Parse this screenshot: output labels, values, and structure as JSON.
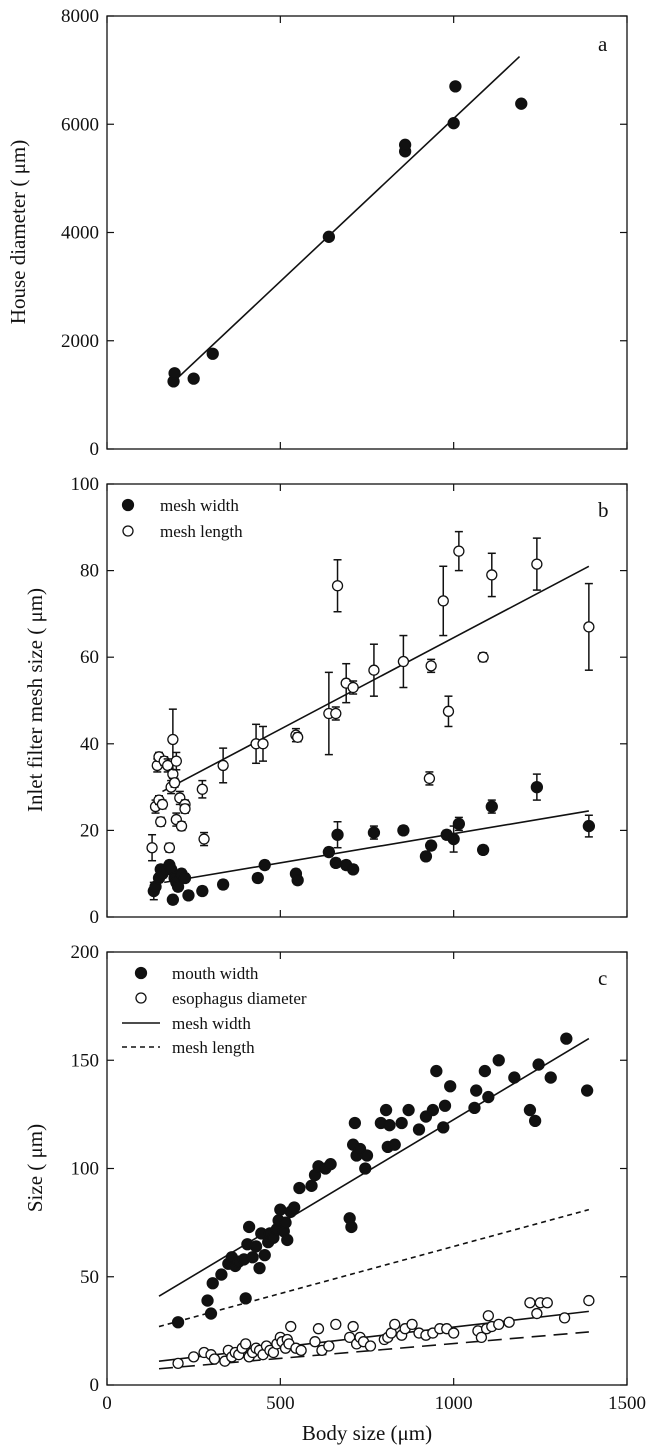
{
  "xlabel": "Body size (μm)",
  "xticks": [
    0,
    500,
    1000,
    1500
  ],
  "xlim": [
    0,
    1500
  ],
  "chart_data": [
    {
      "type": "scatter",
      "panel": "a",
      "ylabel": "House diameter ( μm)",
      "ylim": [
        0,
        8000
      ],
      "yticks": [
        0,
        2000,
        4000,
        6000,
        8000
      ],
      "xlim": [
        0,
        1500
      ],
      "grid": false,
      "series": [
        {
          "marker": "filled",
          "points": [
            [
              192,
              1250
            ],
            [
              195,
              1400
            ],
            [
              250,
              1300
            ],
            [
              305,
              1760
            ],
            [
              640,
              3920
            ],
            [
              860,
              5500
            ],
            [
              860,
              5620
            ],
            [
              1000,
              6020
            ],
            [
              1005,
              6700
            ],
            [
              1195,
              6380
            ]
          ]
        }
      ],
      "fits": [
        {
          "style": "solid",
          "x": [
            185,
            1190
          ],
          "y": [
            1200,
            7250
          ]
        }
      ]
    },
    {
      "type": "scatter",
      "panel": "b",
      "ylabel": "Inlet filter mesh size ( μm)",
      "ylim": [
        0,
        100
      ],
      "yticks": [
        0,
        20,
        40,
        60,
        80,
        100
      ],
      "xlim": [
        0,
        1500
      ],
      "grid": false,
      "legend_position": "top-left",
      "series": [
        {
          "name": "mesh width",
          "marker": "filled",
          "points": [
            [
              135,
              6,
              2
            ],
            [
              140,
              7,
              1
            ],
            [
              150,
              9,
              1
            ],
            [
              155,
              11,
              1
            ],
            [
              160,
              10,
              1
            ],
            [
              170,
              11,
              1
            ],
            [
              180,
              12,
              1
            ],
            [
              185,
              11,
              1
            ],
            [
              190,
              4,
              1
            ],
            [
              195,
              9,
              1
            ],
            [
              200,
              8,
              1
            ],
            [
              205,
              7,
              1
            ],
            [
              215,
              10,
              1
            ],
            [
              225,
              9,
              1
            ],
            [
              235,
              5,
              1
            ],
            [
              275,
              6,
              1
            ],
            [
              335,
              7.5,
              1
            ],
            [
              435,
              9,
              1
            ],
            [
              455,
              12,
              1
            ],
            [
              545,
              10,
              1
            ],
            [
              550,
              8.5,
              1
            ],
            [
              640,
              15,
              1
            ],
            [
              660,
              12.5,
              1
            ],
            [
              665,
              19,
              3
            ],
            [
              690,
              12,
              1
            ],
            [
              710,
              11,
              1
            ],
            [
              770,
              19.5,
              1.5
            ],
            [
              855,
              20,
              1
            ],
            [
              920,
              14,
              1
            ],
            [
              935,
              16.5,
              1
            ],
            [
              980,
              19,
              1
            ],
            [
              1000,
              18,
              3
            ],
            [
              1015,
              21.5,
              1.5
            ],
            [
              1085,
              15.5,
              1
            ],
            [
              1110,
              25.5,
              1.5
            ],
            [
              1240,
              30,
              3
            ],
            [
              1390,
              21,
              2.5
            ]
          ]
        },
        {
          "name": "mesh length",
          "marker": "open",
          "points": [
            [
              130,
              16,
              3
            ],
            [
              140,
              25.5,
              1.5
            ],
            [
              145,
              35,
              1.5
            ],
            [
              150,
              27,
              1
            ],
            [
              150,
              37,
              1
            ],
            [
              155,
              22,
              1
            ],
            [
              160,
              26,
              1
            ],
            [
              165,
              36,
              1
            ],
            [
              175,
              35,
              1.5
            ],
            [
              180,
              16,
              1
            ],
            [
              185,
              30,
              1.5
            ],
            [
              190,
              41,
              7
            ],
            [
              190,
              33,
              1
            ],
            [
              195,
              31,
              1
            ],
            [
              200,
              36,
              2
            ],
            [
              200,
              22.5,
              1.5
            ],
            [
              210,
              27.5,
              1.5
            ],
            [
              215,
              21,
              1
            ],
            [
              225,
              26,
              1
            ],
            [
              225,
              25,
              1
            ],
            [
              275,
              29.5,
              2
            ],
            [
              280,
              18,
              1.5
            ],
            [
              335,
              35,
              4
            ],
            [
              430,
              40,
              4.5
            ],
            [
              450,
              40,
              4
            ],
            [
              545,
              42,
              1.5
            ],
            [
              550,
              41.5,
              1
            ],
            [
              640,
              47,
              9.5
            ],
            [
              660,
              47,
              1.5
            ],
            [
              665,
              76.5,
              6
            ],
            [
              690,
              54,
              4.5
            ],
            [
              710,
              53,
              1.5
            ],
            [
              770,
              57,
              6
            ],
            [
              855,
              59,
              6
            ],
            [
              930,
              32,
              1.5
            ],
            [
              935,
              58,
              1.5
            ],
            [
              970,
              73,
              8
            ],
            [
              985,
              47.5,
              3.5
            ],
            [
              1015,
              84.5,
              4.5
            ],
            [
              1085,
              60,
              1
            ],
            [
              1110,
              79,
              5
            ],
            [
              1240,
              81.5,
              6
            ],
            [
              1390,
              67,
              10
            ]
          ]
        }
      ],
      "fits": [
        {
          "style": "solid",
          "x": [
            160,
            1390
          ],
          "y": [
            29,
            81
          ]
        },
        {
          "style": "solid",
          "x": [
            165,
            1390
          ],
          "y": [
            8,
            24.5
          ]
        }
      ]
    },
    {
      "type": "scatter",
      "panel": "c",
      "ylabel": "Size ( μm)",
      "ylim": [
        0,
        200
      ],
      "yticks": [
        0,
        50,
        100,
        150,
        200
      ],
      "xlim": [
        0,
        1500
      ],
      "grid": false,
      "legend_position": "top-left",
      "series": [
        {
          "name": "mouth width",
          "marker": "filled",
          "points": [
            [
              205,
              29
            ],
            [
              290,
              39
            ],
            [
              300,
              33
            ],
            [
              305,
              47
            ],
            [
              330,
              51
            ],
            [
              350,
              56
            ],
            [
              360,
              59
            ],
            [
              370,
              55
            ],
            [
              380,
              57
            ],
            [
              395,
              58
            ],
            [
              400,
              40
            ],
            [
              405,
              65
            ],
            [
              410,
              73
            ],
            [
              420,
              59
            ],
            [
              430,
              64
            ],
            [
              440,
              54
            ],
            [
              445,
              70
            ],
            [
              455,
              60
            ],
            [
              465,
              66
            ],
            [
              470,
              70
            ],
            [
              480,
              68
            ],
            [
              490,
              72
            ],
            [
              495,
              76
            ],
            [
              500,
              81
            ],
            [
              510,
              71
            ],
            [
              515,
              75
            ],
            [
              520,
              67
            ],
            [
              530,
              80
            ],
            [
              540,
              82
            ],
            [
              555,
              91
            ],
            [
              590,
              92
            ],
            [
              600,
              97
            ],
            [
              610,
              101
            ],
            [
              630,
              100
            ],
            [
              645,
              102
            ],
            [
              700,
              77
            ],
            [
              705,
              73
            ],
            [
              710,
              111
            ],
            [
              715,
              121
            ],
            [
              720,
              106
            ],
            [
              730,
              109
            ],
            [
              745,
              100
            ],
            [
              750,
              106
            ],
            [
              790,
              121
            ],
            [
              805,
              127
            ],
            [
              810,
              110
            ],
            [
              815,
              120
            ],
            [
              830,
              111
            ],
            [
              850,
              121
            ],
            [
              870,
              127
            ],
            [
              900,
              118
            ],
            [
              920,
              124
            ],
            [
              940,
              127
            ],
            [
              950,
              145
            ],
            [
              970,
              119
            ],
            [
              975,
              129
            ],
            [
              990,
              138
            ],
            [
              1060,
              128
            ],
            [
              1065,
              136
            ],
            [
              1090,
              145
            ],
            [
              1100,
              133
            ],
            [
              1130,
              150
            ],
            [
              1175,
              142
            ],
            [
              1220,
              127
            ],
            [
              1235,
              122
            ],
            [
              1245,
              148
            ],
            [
              1280,
              142
            ],
            [
              1325,
              160
            ],
            [
              1385,
              136
            ]
          ]
        },
        {
          "name": "esophagus diameter",
          "marker": "open",
          "points": [
            [
              205,
              10
            ],
            [
              250,
              13
            ],
            [
              280,
              15
            ],
            [
              300,
              14
            ],
            [
              310,
              12
            ],
            [
              340,
              11
            ],
            [
              350,
              16
            ],
            [
              360,
              13
            ],
            [
              370,
              15
            ],
            [
              380,
              14
            ],
            [
              390,
              17
            ],
            [
              400,
              19
            ],
            [
              410,
              13
            ],
            [
              420,
              15
            ],
            [
              430,
              17
            ],
            [
              440,
              16
            ],
            [
              450,
              14
            ],
            [
              460,
              18
            ],
            [
              470,
              16
            ],
            [
              480,
              15
            ],
            [
              490,
              19
            ],
            [
              500,
              22
            ],
            [
              505,
              20
            ],
            [
              515,
              17
            ],
            [
              520,
              21
            ],
            [
              525,
              19
            ],
            [
              530,
              27
            ],
            [
              545,
              17
            ],
            [
              560,
              16
            ],
            [
              600,
              20
            ],
            [
              610,
              26
            ],
            [
              620,
              16
            ],
            [
              640,
              18
            ],
            [
              660,
              28
            ],
            [
              700,
              22
            ],
            [
              710,
              27
            ],
            [
              720,
              19
            ],
            [
              730,
              22
            ],
            [
              740,
              20
            ],
            [
              760,
              18
            ],
            [
              800,
              21
            ],
            [
              810,
              22
            ],
            [
              820,
              24
            ],
            [
              830,
              28
            ],
            [
              850,
              23
            ],
            [
              860,
              26
            ],
            [
              880,
              28
            ],
            [
              900,
              24
            ],
            [
              920,
              23
            ],
            [
              940,
              24
            ],
            [
              960,
              26
            ],
            [
              980,
              26
            ],
            [
              1000,
              24
            ],
            [
              1070,
              25
            ],
            [
              1080,
              22
            ],
            [
              1095,
              26
            ],
            [
              1100,
              32
            ],
            [
              1110,
              27
            ],
            [
              1130,
              28
            ],
            [
              1160,
              29
            ],
            [
              1220,
              38
            ],
            [
              1240,
              33
            ],
            [
              1250,
              38
            ],
            [
              1270,
              38
            ],
            [
              1320,
              31
            ],
            [
              1390,
              39
            ]
          ]
        }
      ],
      "fits": [
        {
          "label": "mesh width",
          "style": "solid",
          "x": [
            150,
            1390
          ],
          "y": [
            41,
            160
          ]
        },
        {
          "label": "mesh length",
          "style": "dashed",
          "x": [
            150,
            1390
          ],
          "y": [
            27,
            81
          ]
        },
        {
          "style": "solid",
          "x": [
            150,
            1390
          ],
          "y": [
            11,
            34
          ]
        },
        {
          "style": "long-dash",
          "x": [
            150,
            1390
          ],
          "y": [
            7.5,
            24.5
          ]
        }
      ],
      "legend_lines": [
        {
          "label": "mesh width",
          "style": "solid"
        },
        {
          "label": "mesh length",
          "style": "dashed"
        }
      ]
    }
  ]
}
